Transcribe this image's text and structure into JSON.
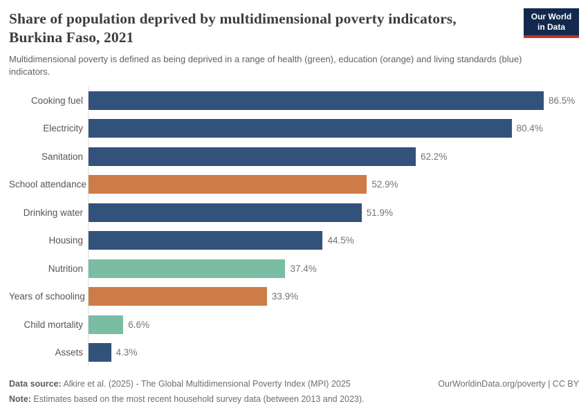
{
  "header": {
    "title": "Share of population deprived by multidimensional poverty indicators, Burkina Faso, 2021",
    "title_lines": [
      "Share of population deprived by multidimensional poverty indicators,",
      "Burkina Faso, 2021"
    ],
    "subtitle": "Multidimensional poverty is defined as being deprived in a range of health (green), education (orange) and living standards (blue) indicators.",
    "logo": {
      "line1": "Our World",
      "line2": "in Data"
    }
  },
  "palette": {
    "blue": "#33527b",
    "orange": "#cd7c47",
    "green": "#7bbda3",
    "axis": "#dcdcdc"
  },
  "chart_data": {
    "type": "bar",
    "orientation": "horizontal",
    "title": "Share of population deprived by multidimensional poverty indicators, Burkina Faso, 2021",
    "categories": [
      "Cooking fuel",
      "Electricity",
      "Sanitation",
      "School attendance",
      "Drinking water",
      "Housing",
      "Nutrition",
      "Years of schooling",
      "Child mortality",
      "Assets"
    ],
    "values": [
      86.5,
      80.4,
      62.2,
      52.9,
      51.9,
      44.5,
      37.4,
      33.9,
      6.6,
      4.3
    ],
    "value_labels": [
      "86.5%",
      "80.4%",
      "62.2%",
      "52.9%",
      "51.9%",
      "44.5%",
      "37.4%",
      "33.9%",
      "6.6%",
      "4.3%"
    ],
    "bar_colors": [
      "blue",
      "blue",
      "blue",
      "orange",
      "blue",
      "blue",
      "green",
      "orange",
      "green",
      "blue"
    ],
    "dimension_by_color": {
      "green": "health",
      "orange": "education",
      "blue": "living standards"
    },
    "xlabel": "",
    "ylabel": "",
    "xlim": [
      0,
      94
    ],
    "plot_max": 94,
    "grid": false,
    "legend": "none"
  },
  "footer": {
    "source_label": "Data source:",
    "source_text": " Alkire et al. (2025) - The Global Multidimensional Poverty Index (MPI) 2025",
    "note_label": "Note:",
    "note_text": " Estimates based on the most recent household survey data (between 2013 and 2023).",
    "right_text": "OurWorldinData.org/poverty | CC BY"
  }
}
